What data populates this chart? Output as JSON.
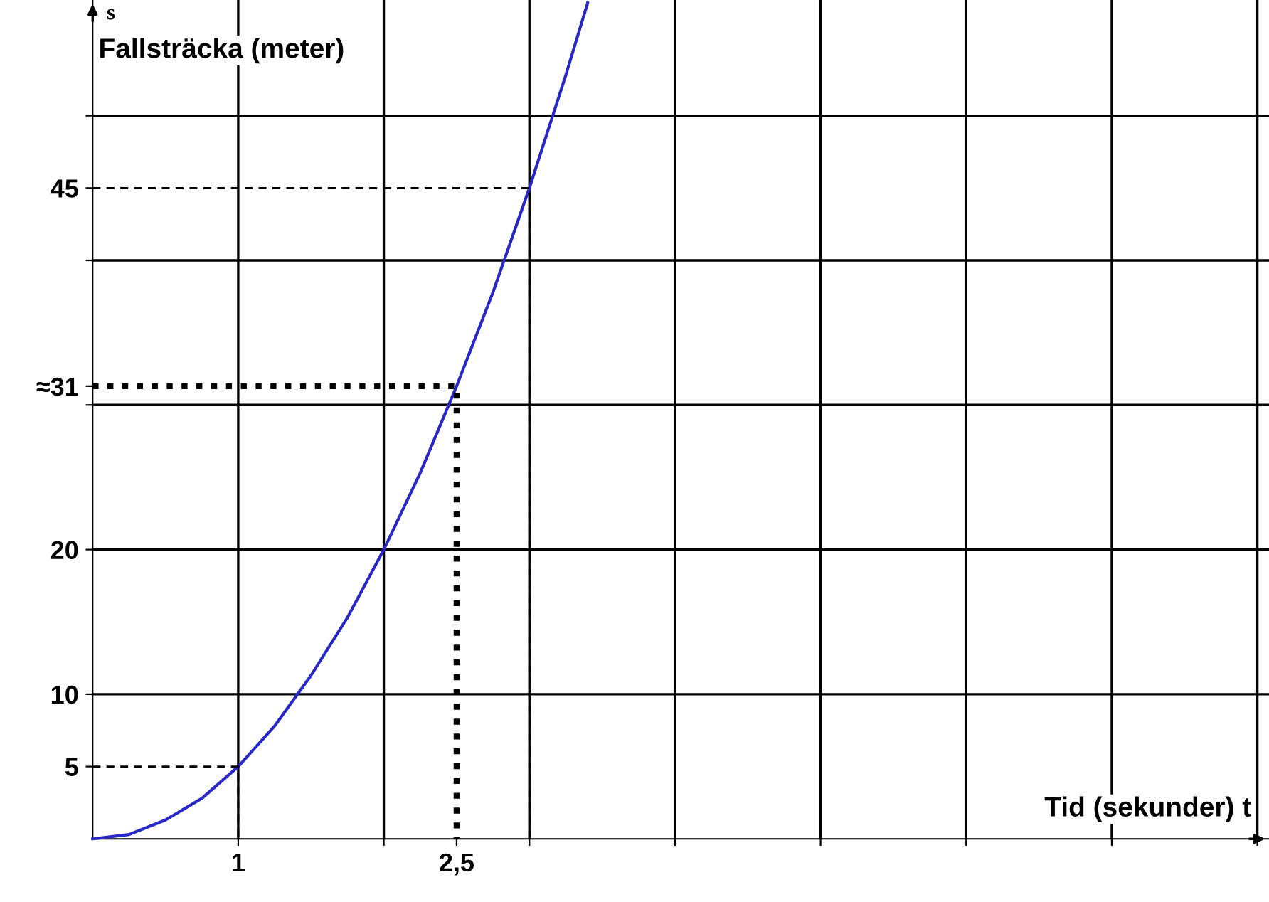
{
  "chart_data": {
    "type": "line",
    "xlabel": "Tid (sekunder) t",
    "ylabel": "Fallsträcka (meter)",
    "xlim": [
      0,
      8.08
    ],
    "ylim": [
      0,
      58
    ],
    "xticks": [
      1,
      {
        "value": 2,
        "label": null
      },
      {
        "value": 2.5,
        "label": "2,5"
      },
      {
        "value": 3,
        "label": null
      },
      {
        "value": 4,
        "label": null
      },
      {
        "value": 5,
        "label": null
      },
      {
        "value": 6,
        "label": null
      },
      {
        "value": 7,
        "label": null
      },
      {
        "value": 8,
        "label": null
      }
    ],
    "yticks": [
      5,
      10,
      20,
      {
        "value": 31.3,
        "label": "≈31"
      },
      45,
      {
        "value": 30,
        "label": null
      },
      {
        "value": 40,
        "label": null
      },
      {
        "value": 50,
        "label": null
      }
    ],
    "grid": true,
    "series": [
      {
        "color": "#2828c8",
        "line_style": "solid",
        "x": [
          0,
          0.25,
          0.5,
          0.75,
          1,
          1.25,
          1.5,
          1.75,
          2,
          2.25,
          2.5,
          2.75,
          3,
          3.25,
          3.4
        ],
        "values": [
          0,
          0.3,
          1.3,
          2.8,
          5,
          7.8,
          11.3,
          15.3,
          20,
          25.3,
          31.3,
          37.8,
          45,
          52.8,
          57.8
        ]
      },
      {
        "color": "#000000",
        "line_style": "dashed",
        "x": [
          0,
          1,
          1
        ],
        "values": [
          5,
          5,
          0
        ]
      },
      {
        "color": "#000000",
        "line_style": "dashed",
        "x": [
          0,
          3,
          3
        ],
        "values": [
          45,
          45,
          0
        ]
      },
      {
        "color": "#000000",
        "line_style": "dotted",
        "x": [
          0,
          2.5,
          2.5
        ],
        "values": [
          31.3,
          31.3,
          0
        ]
      }
    ],
    "annotations": [
      "s"
    ]
  }
}
